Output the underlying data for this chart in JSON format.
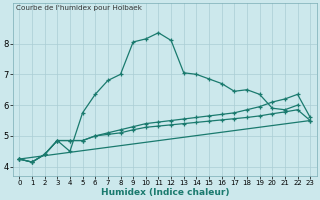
{
  "title": "Courbe de l'humidex pour Holbaek",
  "xlabel": "Humidex (Indice chaleur)",
  "bg_color": "#cce8ec",
  "grid_color": "#aacdd4",
  "line_color": "#1a7a6e",
  "xlim": [
    -0.5,
    23.5
  ],
  "ylim": [
    3.7,
    9.3
  ],
  "yticks": [
    4,
    5,
    6,
    7,
    8
  ],
  "xticks": [
    0,
    1,
    2,
    3,
    4,
    5,
    6,
    7,
    8,
    9,
    10,
    11,
    12,
    13,
    14,
    15,
    16,
    17,
    18,
    19,
    20,
    21,
    22,
    23
  ],
  "lines": [
    {
      "x": [
        0,
        1,
        2,
        3,
        4,
        5,
        6,
        7,
        8,
        9,
        10,
        11,
        12,
        13,
        14,
        15,
        16,
        17,
        18,
        19,
        20,
        21,
        22
      ],
      "y": [
        4.25,
        4.15,
        4.4,
        4.85,
        4.5,
        5.75,
        6.35,
        6.8,
        7.0,
        8.05,
        8.15,
        8.35,
        8.1,
        7.05,
        7.0,
        6.85,
        6.7,
        6.45,
        6.5,
        6.35,
        5.9,
        5.85,
        6.0
      ]
    },
    {
      "x": [
        0,
        1,
        2,
        3,
        4,
        5,
        6,
        7,
        8,
        9,
        10,
        11,
        12,
        13,
        14,
        15,
        16,
        17,
        18,
        19,
        20,
        21,
        22,
        23
      ],
      "y": [
        4.25,
        4.15,
        4.4,
        4.85,
        4.85,
        4.85,
        5.0,
        5.1,
        5.2,
        5.3,
        5.4,
        5.45,
        5.5,
        5.55,
        5.6,
        5.65,
        5.7,
        5.75,
        5.85,
        5.95,
        6.1,
        6.2,
        6.35,
        5.6
      ]
    },
    {
      "x": [
        0,
        1,
        2,
        3,
        4,
        5,
        6,
        7,
        8,
        9,
        10,
        11,
        12,
        13,
        14,
        15,
        16,
        17,
        18,
        19,
        20,
        21,
        22,
        23
      ],
      "y": [
        4.25,
        4.15,
        4.4,
        4.85,
        4.85,
        4.85,
        5.0,
        5.05,
        5.1,
        5.2,
        5.28,
        5.32,
        5.36,
        5.4,
        5.44,
        5.48,
        5.52,
        5.56,
        5.6,
        5.65,
        5.72,
        5.78,
        5.85,
        5.5
      ]
    },
    {
      "x": [
        0,
        23
      ],
      "y": [
        4.25,
        5.5
      ]
    }
  ]
}
